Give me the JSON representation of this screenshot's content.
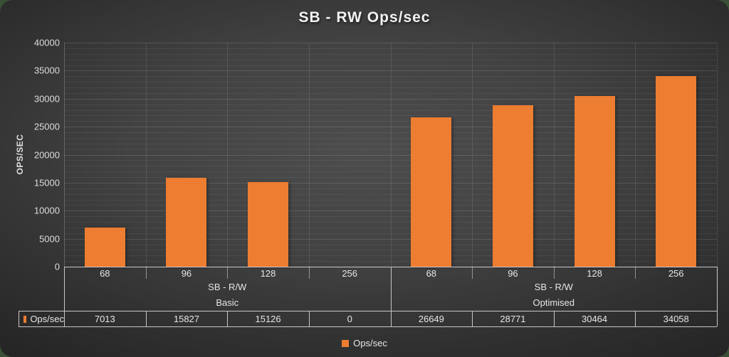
{
  "title": "SB - RW Ops/sec",
  "y_axis": {
    "label": "OPS/SEC",
    "ticks": [
      0,
      5000,
      10000,
      15000,
      20000,
      25000,
      30000,
      35000,
      40000
    ]
  },
  "legend": {
    "label": "Ops/sec",
    "swatch_color": "#ED7D31"
  },
  "table": {
    "row_header": "Ops/sec"
  },
  "chart_data": {
    "type": "bar",
    "title": "SB - RW Ops/sec",
    "xlabel": "",
    "ylabel": "OPS/SEC",
    "ylim": [
      0,
      40000
    ],
    "y_major_unit": 5000,
    "y_minor_unit": 1000,
    "grid": true,
    "legend_position": "bottom",
    "series_name": "Ops/sec",
    "bar_color": "#ED7D31",
    "categories": [
      "68",
      "96",
      "128",
      "256",
      "68",
      "96",
      "128",
      "256"
    ],
    "values": [
      7013,
      15827,
      15126,
      0,
      26649,
      28771,
      30464,
      34058
    ],
    "groups": [
      {
        "label": "SB - R/W",
        "sublabel": "Basic",
        "categories": [
          "68",
          "96",
          "128",
          "256"
        ],
        "values": [
          7013,
          15827,
          15126,
          0
        ]
      },
      {
        "label": "SB - R/W",
        "sublabel": "Optimised",
        "categories": [
          "68",
          "96",
          "128",
          "256"
        ],
        "values": [
          26649,
          28771,
          30464,
          34058
        ]
      }
    ]
  }
}
